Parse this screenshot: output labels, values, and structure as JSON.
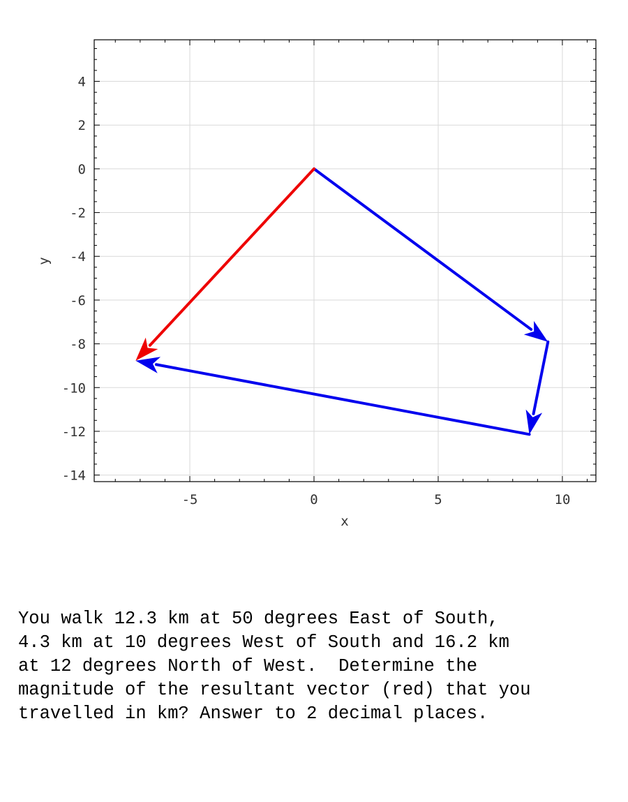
{
  "chart_data": {
    "type": "vector-plot",
    "xlabel": "x",
    "ylabel": "y",
    "xlim": [
      -8.85,
      11.35
    ],
    "ylim": [
      -14.3,
      5.9
    ],
    "xticks": [
      -5,
      0,
      5,
      10
    ],
    "yticks": [
      4,
      2,
      0,
      -2,
      -4,
      -6,
      -8,
      -10,
      -12,
      -14
    ],
    "x_minor_step": 1,
    "y_minor_step": 0.5,
    "grid": true,
    "vectors": [
      {
        "role": "displacement 1",
        "from": [
          0,
          0
        ],
        "to": [
          9.42,
          -7.91
        ],
        "color": "#0000ee"
      },
      {
        "role": "displacement 2",
        "from": [
          9.42,
          -7.91
        ],
        "to": [
          8.67,
          -12.14
        ],
        "color": "#0000ee"
      },
      {
        "role": "displacement 3",
        "from": [
          8.67,
          -12.14
        ],
        "to": [
          -7.18,
          -8.77
        ],
        "color": "#0000ee"
      },
      {
        "role": "resultant",
        "from": [
          0,
          0
        ],
        "to": [
          -7.18,
          -8.77
        ],
        "color": "#ee0000"
      }
    ]
  },
  "question": {
    "lines": [
      "You walk 12.3 km at 50 degrees East of South,",
      "4.3 km at 10 degrees West of South and 16.2 km",
      "at 12 degrees North of West.  Determine the",
      "magnitude of the resultant vector (red) that you",
      "travelled in km? Answer to 2 decimal places."
    ]
  }
}
